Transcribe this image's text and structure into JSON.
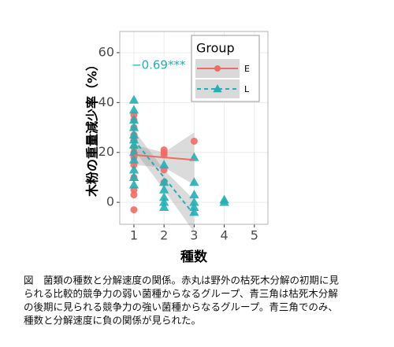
{
  "chart_data": {
    "type": "scatter",
    "y_label": "木粉の重量減少率（%）",
    "x_label": "種数",
    "annotation": "−0.69***",
    "annotation_color": "#21b0b5",
    "legend_title": "Group",
    "legend_position": "top-right",
    "grid": true,
    "xlim": [
      0.53,
      5.45
    ],
    "xticks": [
      1,
      2,
      3,
      4,
      5
    ],
    "ylim": [
      -8.8,
      68.5
    ],
    "yticks": [
      0,
      20,
      40,
      60
    ],
    "series": [
      {
        "name": "E",
        "color": "#ef6b63",
        "marker": "circle",
        "line": "solid",
        "x": [
          1,
          1,
          1,
          1,
          1,
          1,
          1,
          1,
          1,
          1,
          1,
          1,
          1,
          2,
          2,
          2,
          2,
          2,
          3
        ],
        "values": [
          35,
          33,
          30,
          27,
          25,
          22,
          20,
          18,
          15,
          10,
          5,
          3,
          -3,
          21,
          20,
          19,
          13,
          8,
          24.5
        ],
        "fit": {
          "x": [
            1,
            3
          ],
          "values": [
            19,
            17
          ]
        },
        "band": {
          "x": [
            1,
            2,
            3
          ],
          "lower": [
            15,
            14,
            7
          ],
          "upper": [
            23,
            20,
            28
          ]
        }
      },
      {
        "name": "L",
        "color": "#21b0b5",
        "marker": "triangle",
        "line": "dashed",
        "x": [
          1,
          1,
          1,
          1,
          1,
          1,
          1,
          1,
          1,
          1,
          1,
          1,
          2,
          2,
          2,
          2,
          2,
          2,
          3,
          3,
          3,
          3,
          3,
          3,
          4,
          4
        ],
        "values": [
          41,
          37,
          33,
          30,
          27,
          25,
          23,
          20,
          17,
          13,
          10,
          7,
          15,
          8,
          5,
          2,
          0,
          -2,
          18,
          8,
          3,
          0,
          -2,
          -4,
          1,
          0
        ],
        "fit": {
          "x": [
            1,
            3
          ],
          "values": [
            25,
            -5
          ]
        },
        "band": {
          "x": [
            1,
            2,
            3
          ],
          "lower": [
            21,
            5,
            -12
          ],
          "upper": [
            29,
            13,
            1
          ]
        }
      }
    ],
    "caption": [
      "図　菌類の種数と分解速度の関係。赤丸は野外の枯死木分解の初期に見",
      "られる比較的競争力の弱い菌種からなるグループ、青三角は枯死木分解",
      "の後期に見られる競争力の強い菌種からなるグループ。青三角でのみ、",
      "種数と分解速度に負の関係が見られた。"
    ]
  }
}
